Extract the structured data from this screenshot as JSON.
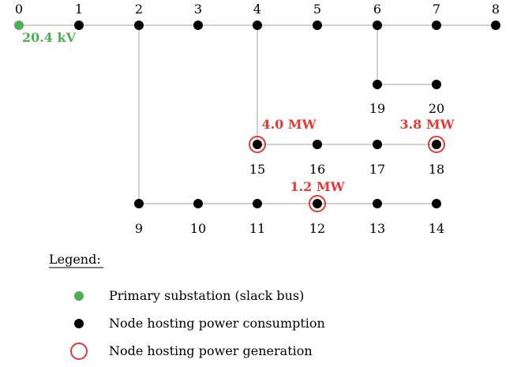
{
  "colors": {
    "slack": "#4caf50",
    "consumption": "#000000",
    "generation": "#e53935",
    "edge": "#b3b3b3"
  },
  "nodes": [
    {
      "id": "0",
      "label": "0",
      "type": "slack"
    },
    {
      "id": "1",
      "label": "1",
      "type": "consumption"
    },
    {
      "id": "2",
      "label": "2",
      "type": "consumption"
    },
    {
      "id": "3",
      "label": "3",
      "type": "consumption"
    },
    {
      "id": "4",
      "label": "4",
      "type": "consumption"
    },
    {
      "id": "5",
      "label": "5",
      "type": "consumption"
    },
    {
      "id": "6",
      "label": "6",
      "type": "consumption"
    },
    {
      "id": "7",
      "label": "7",
      "type": "consumption"
    },
    {
      "id": "8",
      "label": "8",
      "type": "consumption"
    },
    {
      "id": "9",
      "label": "9",
      "type": "consumption"
    },
    {
      "id": "10",
      "label": "10",
      "type": "consumption"
    },
    {
      "id": "11",
      "label": "11",
      "type": "consumption"
    },
    {
      "id": "12",
      "label": "12",
      "type": "generation"
    },
    {
      "id": "13",
      "label": "13",
      "type": "consumption"
    },
    {
      "id": "14",
      "label": "14",
      "type": "consumption"
    },
    {
      "id": "15",
      "label": "15",
      "type": "generation"
    },
    {
      "id": "16",
      "label": "16",
      "type": "consumption"
    },
    {
      "id": "17",
      "label": "17",
      "type": "consumption"
    },
    {
      "id": "18",
      "label": "18",
      "type": "generation"
    },
    {
      "id": "19",
      "label": "19",
      "type": "consumption"
    },
    {
      "id": "20",
      "label": "20",
      "type": "consumption"
    }
  ],
  "edges": [
    [
      "0",
      "1"
    ],
    [
      "1",
      "2"
    ],
    [
      "2",
      "3"
    ],
    [
      "3",
      "4"
    ],
    [
      "4",
      "5"
    ],
    [
      "5",
      "6"
    ],
    [
      "6",
      "7"
    ],
    [
      "7",
      "8"
    ],
    [
      "2",
      "9"
    ],
    [
      "9",
      "10"
    ],
    [
      "10",
      "11"
    ],
    [
      "11",
      "12"
    ],
    [
      "12",
      "13"
    ],
    [
      "13",
      "14"
    ],
    [
      "4",
      "15"
    ],
    [
      "15",
      "16"
    ],
    [
      "16",
      "17"
    ],
    [
      "17",
      "18"
    ],
    [
      "6",
      "19"
    ],
    [
      "19",
      "20"
    ]
  ],
  "annotations": [
    {
      "node": "0",
      "text": "20.4 kV",
      "color": "#4caf50"
    },
    {
      "node": "15",
      "text": "4.0 MW",
      "color": "#e53935"
    },
    {
      "node": "18",
      "text": "3.8 MW",
      "color": "#e53935"
    },
    {
      "node": "12",
      "text": "1.2 MW",
      "color": "#e53935"
    }
  ],
  "legend": {
    "title": "Legend:",
    "items": [
      {
        "symbol": "slack",
        "text": "Primary substation (slack bus)"
      },
      {
        "symbol": "consumption",
        "text": "Node hosting power consumption"
      },
      {
        "symbol": "generation",
        "text": "Node hosting power generation"
      }
    ]
  }
}
